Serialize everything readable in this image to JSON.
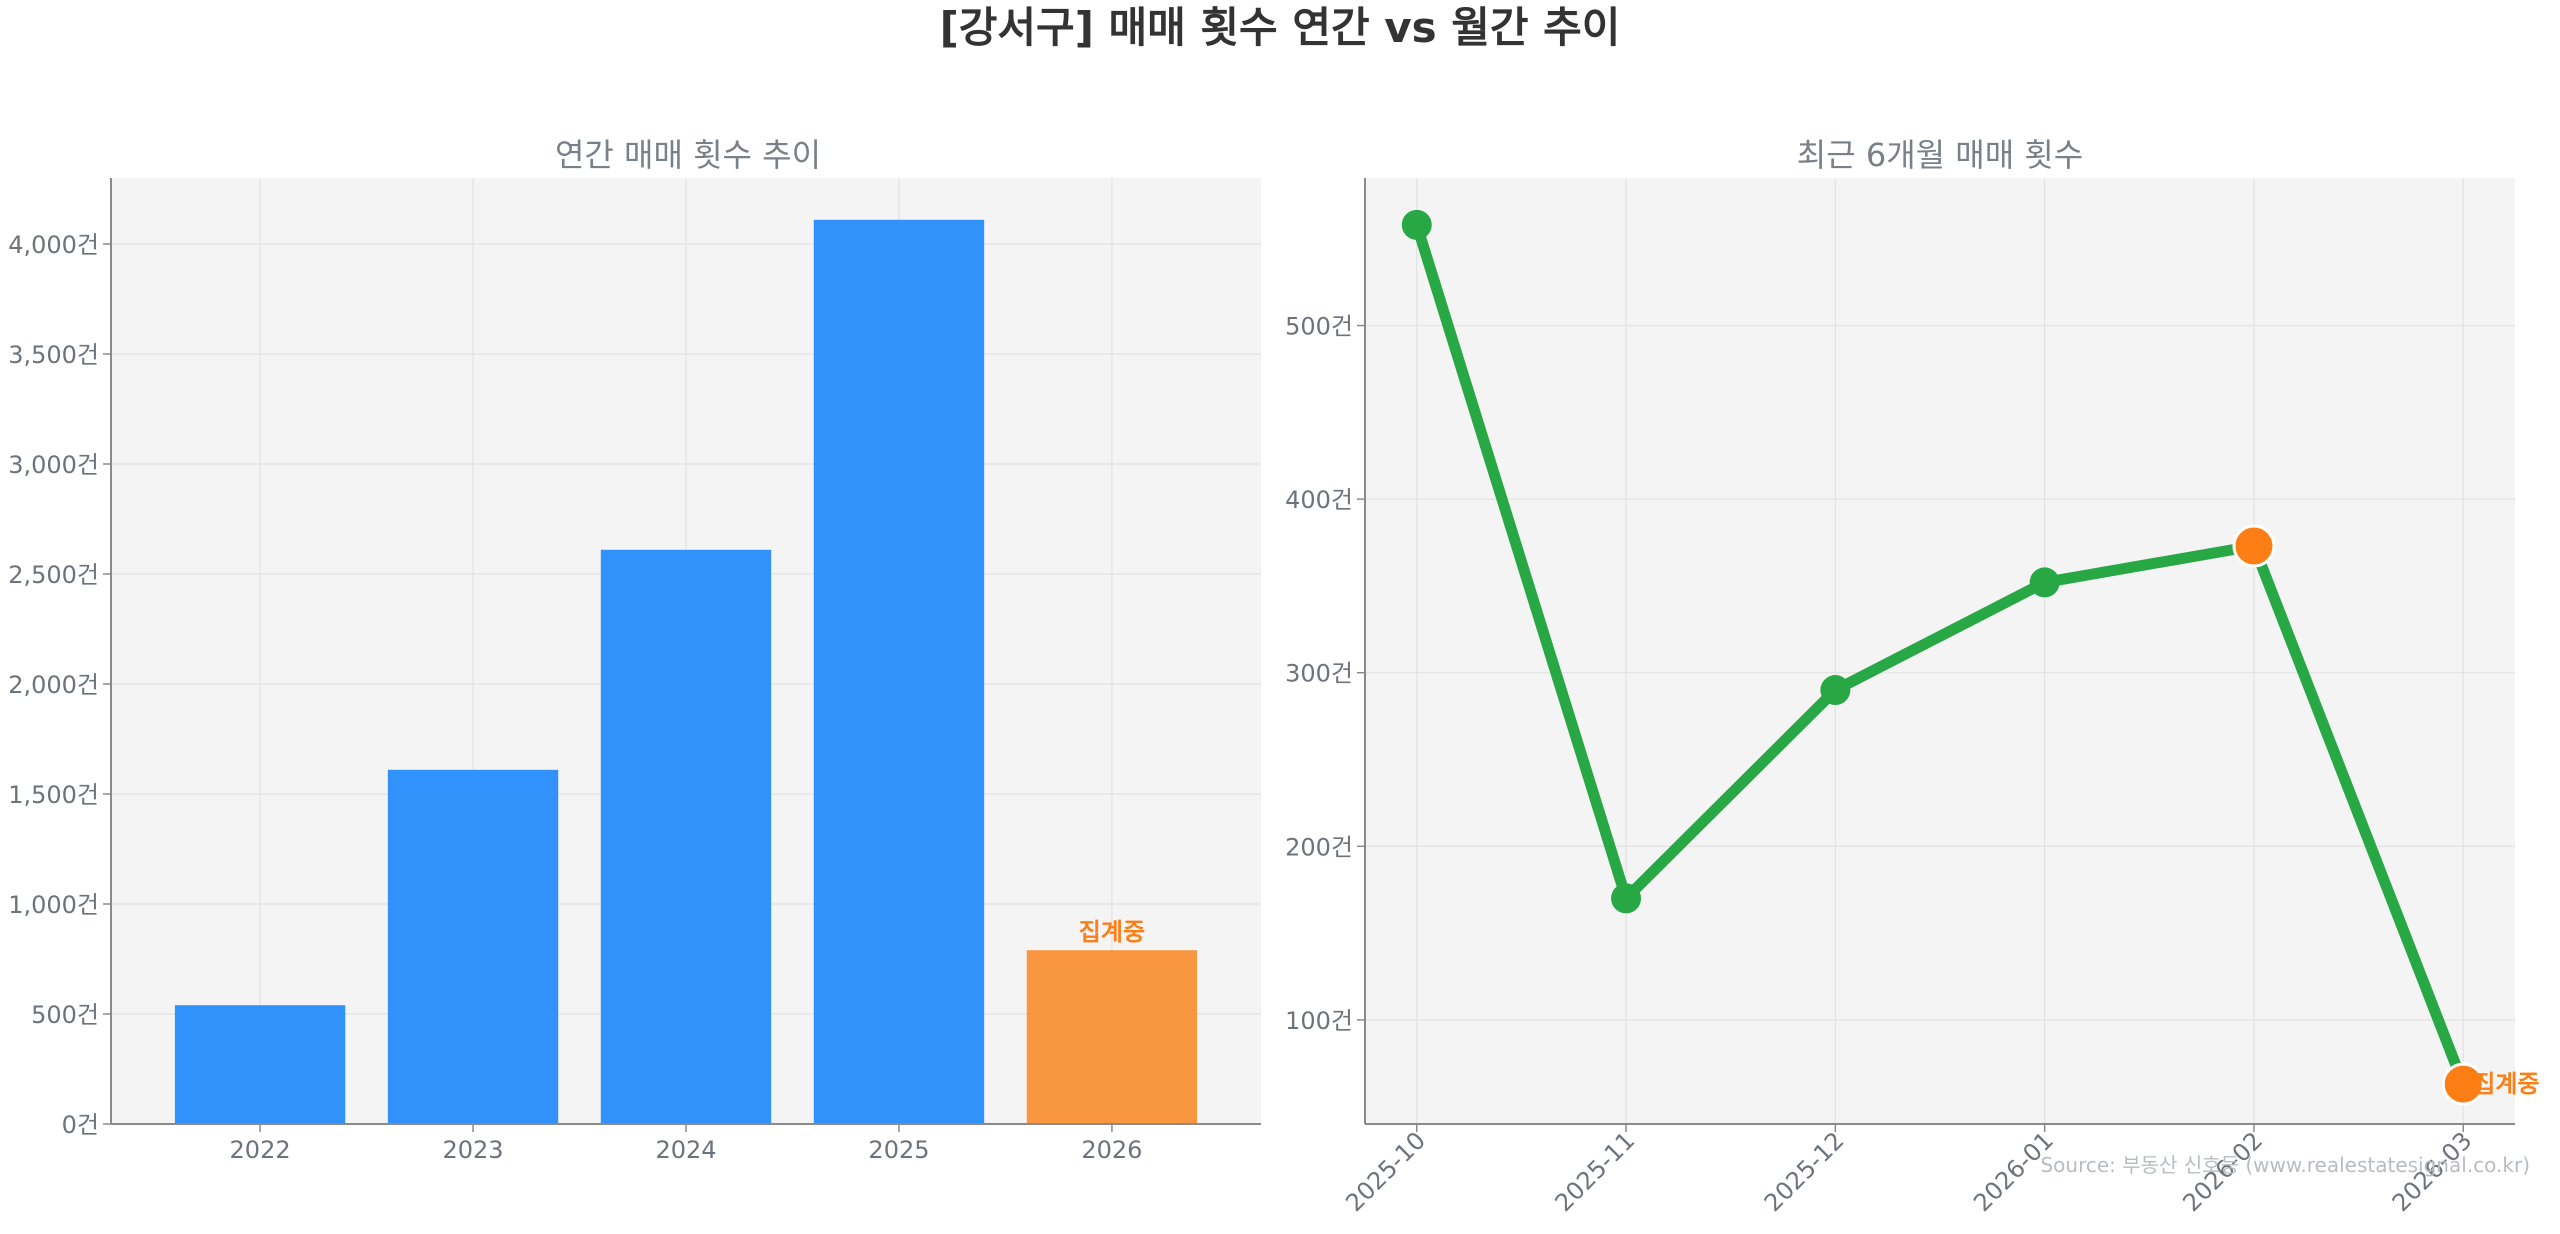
{
  "figure": {
    "title": "[강서구] 매매 횟수 연간 vs 월간 추이",
    "source": "Source: 부동산 신호등 (www.realestatesignal.co.kr)"
  },
  "colors": {
    "bar": "#3192fb",
    "bar_partial": "#f99740",
    "line": "#28a745",
    "highlight": "#fd7e14",
    "plot_bg": "#f4f4f4",
    "grid": "#e2e2e2",
    "spine": "#8a8a8a"
  },
  "chart_data": [
    {
      "type": "bar",
      "title": "연간 매매 횟수 추이",
      "categories": [
        "2022",
        "2023",
        "2024",
        "2025",
        "2026"
      ],
      "values": [
        540,
        1610,
        2610,
        4110,
        790
      ],
      "ylim": [
        0,
        4300
      ],
      "yticks": [
        0,
        500,
        1000,
        1500,
        2000,
        2500,
        3000,
        3500,
        4000
      ],
      "ytick_labels": [
        "0건",
        "500건",
        "1,000건",
        "1,500건",
        "2,000건",
        "2,500건",
        "3,000건",
        "3,500건",
        "4,000건"
      ],
      "partial_index": 4,
      "partial_label": "집계중",
      "grid": true
    },
    {
      "type": "line",
      "title": "최근 6개월 매매 횟수",
      "categories": [
        "2025-10",
        "2025-11",
        "2025-12",
        "2026-01",
        "2026-02",
        "2026-03"
      ],
      "values": [
        558,
        170,
        290,
        352,
        373,
        63
      ],
      "highlight_indices": [
        4,
        5
      ],
      "partial_index": 5,
      "partial_label": "집계중",
      "ylim": [
        40,
        585
      ],
      "yticks": [
        100,
        200,
        300,
        400,
        500
      ],
      "ytick_labels": [
        "100건",
        "200건",
        "300건",
        "400건",
        "500건"
      ],
      "grid": true
    }
  ]
}
